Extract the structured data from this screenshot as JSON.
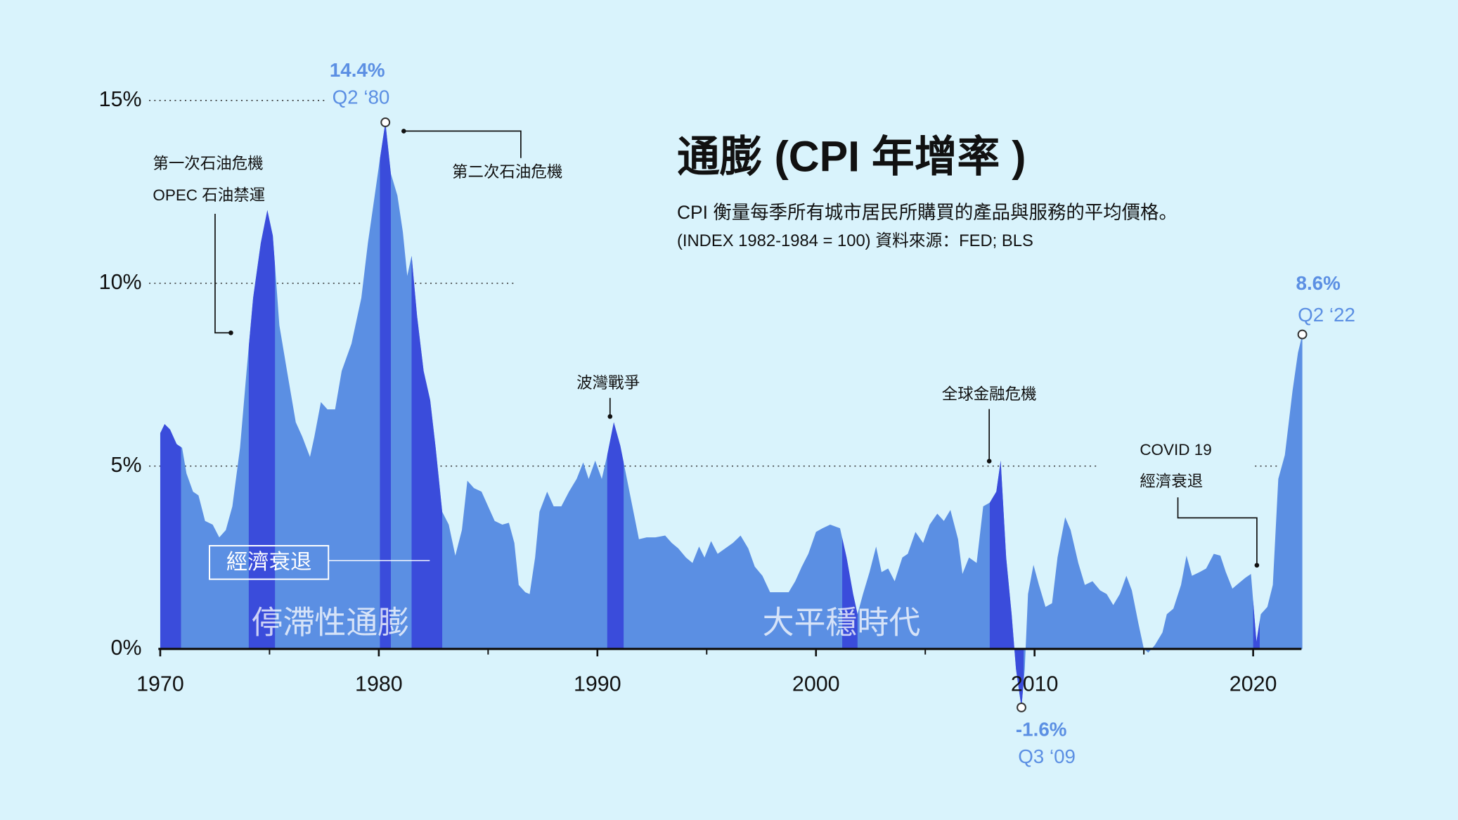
{
  "chart_data": {
    "type": "area",
    "title": "通膨 (CPI 年增率 )",
    "subtitle": "CPI 衡量每季所有城市居民所購買的產品與服務的平均價格。",
    "source": "(INDEX 1982-1984 = 100)   資料來源：FED; BLS",
    "color": "#5b8fe3",
    "x": [
      1970.0,
      1970.2,
      1970.45,
      1970.75,
      1971.0,
      1971.2,
      1971.5,
      1971.75,
      1972.05,
      1972.4,
      1972.7,
      1973.0,
      1973.3,
      1973.65,
      1973.95,
      1974.25,
      1974.6,
      1974.9,
      1975.15,
      1975.45,
      1975.8,
      1976.2,
      1976.5,
      1976.85,
      1977.05,
      1977.35,
      1977.65,
      1978.0,
      1978.3,
      1978.75,
      1979.2,
      1979.5,
      1979.8,
      1980.05,
      1980.3,
      1980.55,
      1980.85,
      1981.1,
      1981.3,
      1981.5,
      1981.75,
      1982.05,
      1982.35,
      1982.6,
      1982.9,
      1983.2,
      1983.5,
      1983.8,
      1984.05,
      1984.35,
      1984.7,
      1985.0,
      1985.3,
      1985.65,
      1985.95,
      1986.2,
      1986.4,
      1986.7,
      1986.9,
      1987.15,
      1987.35,
      1987.7,
      1988.0,
      1988.35,
      1988.7,
      1989.05,
      1989.35,
      1989.6,
      1989.9,
      1990.2,
      1990.45,
      1990.75,
      1991.05,
      1991.3,
      1991.6,
      1991.9,
      1992.25,
      1992.65,
      1993.1,
      1993.4,
      1993.7,
      1994.05,
      1994.35,
      1994.65,
      1994.9,
      1995.2,
      1995.5,
      1995.85,
      1996.2,
      1996.55,
      1996.9,
      1997.2,
      1997.55,
      1997.9,
      1998.3,
      1998.75,
      1999.05,
      1999.35,
      1999.65,
      2000.0,
      2000.3,
      2000.65,
      2001.1,
      2001.4,
      2001.7,
      2001.9,
      2002.15,
      2002.45,
      2002.75,
      2003.0,
      2003.3,
      2003.6,
      2003.95,
      2004.2,
      2004.55,
      2004.9,
      2005.2,
      2005.55,
      2005.85,
      2006.15,
      2006.5,
      2006.7,
      2007.0,
      2007.35,
      2007.65,
      2007.95,
      2008.25,
      2008.45,
      2008.7,
      2008.95,
      2009.15,
      2009.4,
      2009.55,
      2009.7,
      2009.95,
      2010.2,
      2010.5,
      2010.8,
      2011.05,
      2011.4,
      2011.65,
      2012.0,
      2012.3,
      2012.65,
      2013.0,
      2013.3,
      2013.6,
      2013.9,
      2014.2,
      2014.45,
      2014.75,
      2015.0,
      2015.2,
      2015.5,
      2015.85,
      2016.05,
      2016.35,
      2016.7,
      2016.95,
      2017.2,
      2017.55,
      2017.85,
      2018.2,
      2018.5,
      2018.75,
      2019.05,
      2019.35,
      2019.65,
      2019.9,
      2020.15,
      2020.35,
      2020.65,
      2020.9,
      2021.15,
      2021.45,
      2021.8,
      2022.05,
      2022.25
    ],
    "values": [
      5.9,
      6.15,
      6.0,
      5.6,
      5.5,
      4.8,
      4.3,
      4.2,
      3.5,
      3.4,
      3.05,
      3.25,
      3.9,
      5.5,
      7.6,
      9.6,
      11.1,
      12.0,
      11.3,
      8.85,
      7.6,
      6.2,
      5.8,
      5.25,
      5.8,
      6.75,
      6.55,
      6.55,
      7.6,
      8.35,
      9.6,
      11.1,
      12.35,
      13.4,
      14.4,
      13.0,
      12.4,
      11.4,
      10.2,
      10.75,
      9.1,
      7.6,
      6.8,
      5.5,
      3.75,
      3.4,
      2.55,
      3.25,
      4.6,
      4.4,
      4.3,
      3.9,
      3.5,
      3.4,
      3.45,
      2.9,
      1.75,
      1.55,
      1.5,
      2.5,
      3.75,
      4.3,
      3.9,
      3.9,
      4.3,
      4.65,
      5.1,
      4.65,
      5.15,
      4.65,
      5.3,
      6.2,
      5.55,
      4.8,
      3.9,
      3.0,
      3.05,
      3.05,
      3.1,
      2.9,
      2.75,
      2.5,
      2.35,
      2.8,
      2.5,
      2.95,
      2.6,
      2.75,
      2.9,
      3.1,
      2.75,
      2.25,
      2.0,
      1.55,
      1.55,
      1.55,
      1.85,
      2.25,
      2.6,
      3.2,
      3.3,
      3.4,
      3.3,
      2.5,
      1.5,
      0.95,
      1.5,
      2.1,
      2.8,
      2.1,
      2.2,
      1.85,
      2.5,
      2.6,
      3.2,
      2.9,
      3.4,
      3.7,
      3.5,
      3.8,
      3.0,
      2.05,
      2.5,
      2.35,
      3.9,
      4.0,
      4.3,
      5.15,
      2.5,
      0.95,
      -0.55,
      -1.6,
      -0.55,
      1.5,
      2.3,
      1.75,
      1.15,
      1.25,
      2.5,
      3.6,
      3.25,
      2.35,
      1.75,
      1.85,
      1.6,
      1.5,
      1.2,
      1.5,
      2.0,
      1.6,
      0.7,
      0,
      -0.1,
      0.1,
      0.45,
      0.95,
      1.1,
      1.75,
      2.55,
      2.0,
      2.1,
      2.2,
      2.6,
      2.55,
      2.1,
      1.65,
      1.8,
      1.95,
      2.05,
      0.2,
      0.95,
      1.15,
      1.75,
      4.65,
      5.3,
      7.05,
      8.1,
      8.6
    ],
    "xlim": [
      1970,
      2020
    ],
    "xticks": [
      1970,
      1980,
      1990,
      2000,
      2010,
      2020
    ],
    "xminor": [
      1975,
      1985,
      1995,
      2005,
      2015
    ],
    "ylim": [
      0,
      15
    ],
    "yticks": [
      {
        "value": 0,
        "label": "0%"
      },
      {
        "value": 5,
        "label": "5%"
      },
      {
        "value": 10,
        "label": "10%"
      },
      {
        "value": 15,
        "label": "15%"
      }
    ],
    "grid": true,
    "recessions": {
      "label": "經濟衰退",
      "color": "#3a4cdb",
      "periods": [
        [
          1970.0,
          1970.95
        ],
        [
          1974.05,
          1975.25
        ],
        [
          1980.05,
          1980.55
        ],
        [
          1981.5,
          1982.9
        ],
        [
          1990.45,
          1991.2
        ],
        [
          2001.2,
          2001.9
        ],
        [
          2007.95,
          2009.5
        ],
        [
          2020.0,
          2020.3
        ]
      ]
    },
    "eras": [
      "停滯性通膨",
      "大平穩時代"
    ],
    "peaks": [
      {
        "x": 1980.3,
        "value": 14.4,
        "label": "14.4%",
        "period": "Q2 ‘80"
      },
      {
        "x": 2009.4,
        "value": -1.6,
        "label": "-1.6%",
        "period": "Q3 ‘09"
      },
      {
        "x": 2022.25,
        "value": 8.6,
        "label": "8.6%",
        "period": "Q2 ‘22"
      }
    ],
    "annotations": [
      {
        "lines": [
          "第一次石油危機",
          "OPEC 石油禁運"
        ]
      },
      {
        "lines": [
          "第二次石油危機"
        ]
      },
      {
        "lines": [
          "波灣戰爭"
        ]
      },
      {
        "lines": [
          "全球金融危機"
        ]
      },
      {
        "lines": [
          "COVID 19",
          "經濟衰退"
        ]
      }
    ]
  }
}
